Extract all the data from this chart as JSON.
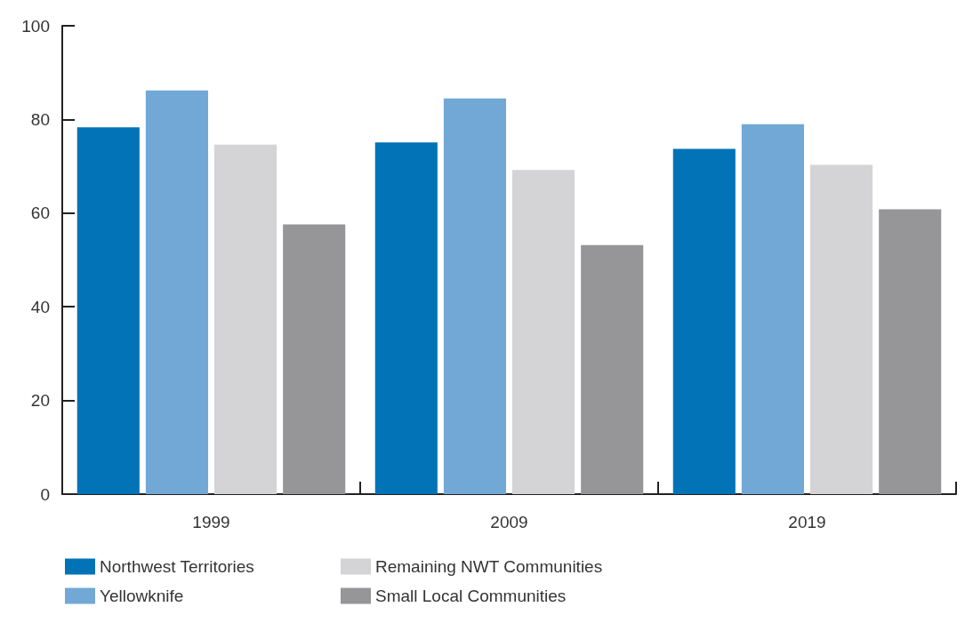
{
  "chart_data": {
    "type": "bar",
    "categories": [
      "1999",
      "2009",
      "2019"
    ],
    "series": [
      {
        "name": "Northwest Territories",
        "color": "#0173b6",
        "values": [
          78.3,
          75.1,
          73.7
        ]
      },
      {
        "name": "Yellowknife",
        "color": "#71a8d6",
        "values": [
          86.2,
          84.5,
          79.0
        ]
      },
      {
        "name": "Remaining NWT Communities",
        "color": "#d4d4d6",
        "values": [
          74.6,
          69.2,
          70.3
        ]
      },
      {
        "name": "Small Local Communities",
        "color": "#969699",
        "values": [
          57.6,
          53.2,
          60.8
        ]
      }
    ],
    "ylim": [
      0,
      100
    ],
    "yticks": [
      0,
      20,
      40,
      60,
      80,
      100
    ],
    "grid": false,
    "legend": "bottom"
  }
}
